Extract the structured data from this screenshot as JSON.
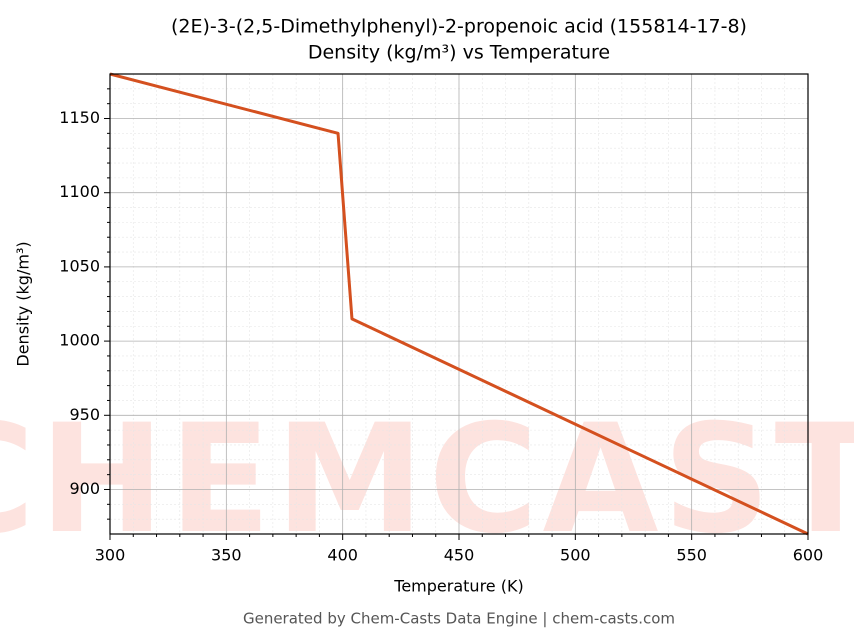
{
  "chart_data": {
    "type": "line",
    "title": "(2E)-3-(2,5-Dimethylphenyl)-2-propenoic acid (155814-17-8)",
    "subtitle": "Density (kg/m³) vs Temperature",
    "x_label": "Temperature (K)",
    "y_label": "Density (kg/m³)",
    "footer": "Generated by Chem-Casts Data Engine | chem-casts.com",
    "watermark": "CHEMCASTS",
    "x": [
      300,
      398,
      404,
      600
    ],
    "series": [
      {
        "name": "Density",
        "color": "#d4501f",
        "values": [
          1180,
          1140,
          1015,
          870
        ]
      }
    ],
    "xlim": [
      300,
      600
    ],
    "ylim": [
      870,
      1180
    ],
    "xticks": [
      300,
      350,
      400,
      450,
      500,
      550,
      600
    ],
    "yticks": [
      900,
      950,
      1000,
      1050,
      1100,
      1150
    ],
    "xminorticks": [
      310,
      320,
      330,
      340,
      360,
      370,
      380,
      390,
      410,
      420,
      430,
      440,
      460,
      470,
      480,
      490,
      510,
      520,
      530,
      540,
      560,
      570,
      580,
      590
    ],
    "yminorticks": [
      880,
      890,
      910,
      920,
      930,
      940,
      960,
      970,
      980,
      990,
      1010,
      1020,
      1030,
      1040,
      1060,
      1070,
      1080,
      1090,
      1110,
      1120,
      1130,
      1140,
      1160,
      1170
    ],
    "grid": true
  }
}
